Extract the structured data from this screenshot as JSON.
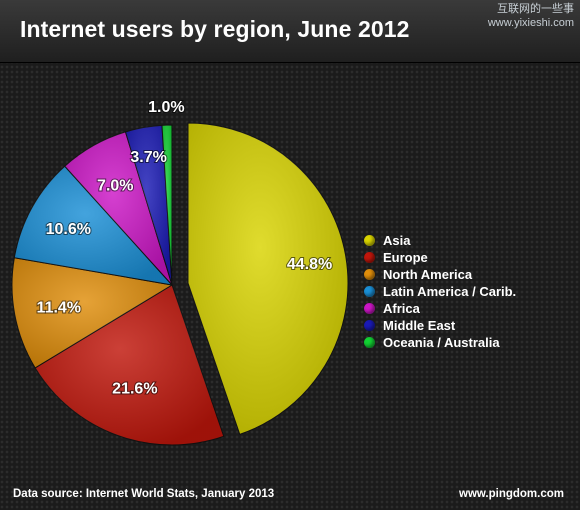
{
  "watermark": {
    "line1": "互联网的一些事",
    "line2": "www.yixieshi.com"
  },
  "chart_data": {
    "type": "pie",
    "title": "Internet users by region, June 2012",
    "legend_position": "right",
    "slices": [
      {
        "name": "Asia",
        "value": 44.8,
        "label": "44.8%",
        "color": "#d9d400"
      },
      {
        "name": "Europe",
        "value": 21.6,
        "label": "21.6%",
        "color": "#c0160b"
      },
      {
        "name": "North America",
        "value": 11.4,
        "label": "11.4%",
        "color": "#e08e0b"
      },
      {
        "name": "Latin America / Carib.",
        "value": 10.6,
        "label": "10.6%",
        "color": "#1a8fd6"
      },
      {
        "name": "Africa",
        "value": 7.0,
        "label": "7.0%",
        "color": "#cc16c6"
      },
      {
        "name": "Middle East",
        "value": 3.7,
        "label": "3.7%",
        "color": "#1a1ab5"
      },
      {
        "name": "Oceania / Australia",
        "value": 1.0,
        "label": "1.0%",
        "color": "#12d233"
      }
    ]
  },
  "footer": {
    "source": "Data source: Internet World Stats, January 2013",
    "site": "www.pingdom.com"
  }
}
